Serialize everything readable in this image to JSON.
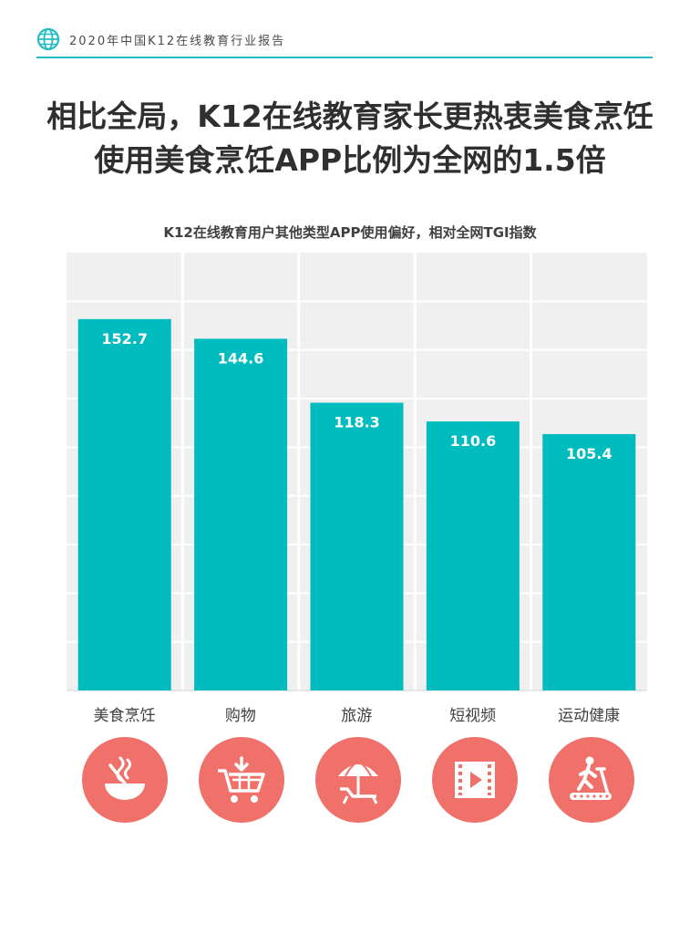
{
  "header": {
    "title": "2020年中国K12在线教育行业报告"
  },
  "headline": {
    "line1": "相比全局，K12在线教育家长更热衷美食烹饪",
    "line2": "使用美食烹饪APP比例为全网的1.5倍"
  },
  "colors": {
    "accent": "#22bcc4",
    "bar": "#00bcbe",
    "icon_bg": "#f0706a",
    "grid_bg": "#f0f0f0"
  },
  "chart_data": {
    "type": "bar",
    "title": "K12在线教育用户其他类型APP使用偏好，相对全网TGI指数",
    "categories": [
      "美食烹饪",
      "购物",
      "旅游",
      "短视频",
      "运动健康"
    ],
    "values": [
      152.7,
      144.6,
      118.3,
      110.6,
      105.4
    ],
    "value_labels": [
      "152.7",
      "144.6",
      "118.3",
      "110.6",
      "105.4"
    ],
    "ylim": [
      0,
      180
    ],
    "grid": true
  },
  "icons": [
    "cooking-bowl-icon",
    "shopping-cart-icon",
    "beach-umbrella-icon",
    "video-film-icon",
    "treadmill-icon"
  ]
}
